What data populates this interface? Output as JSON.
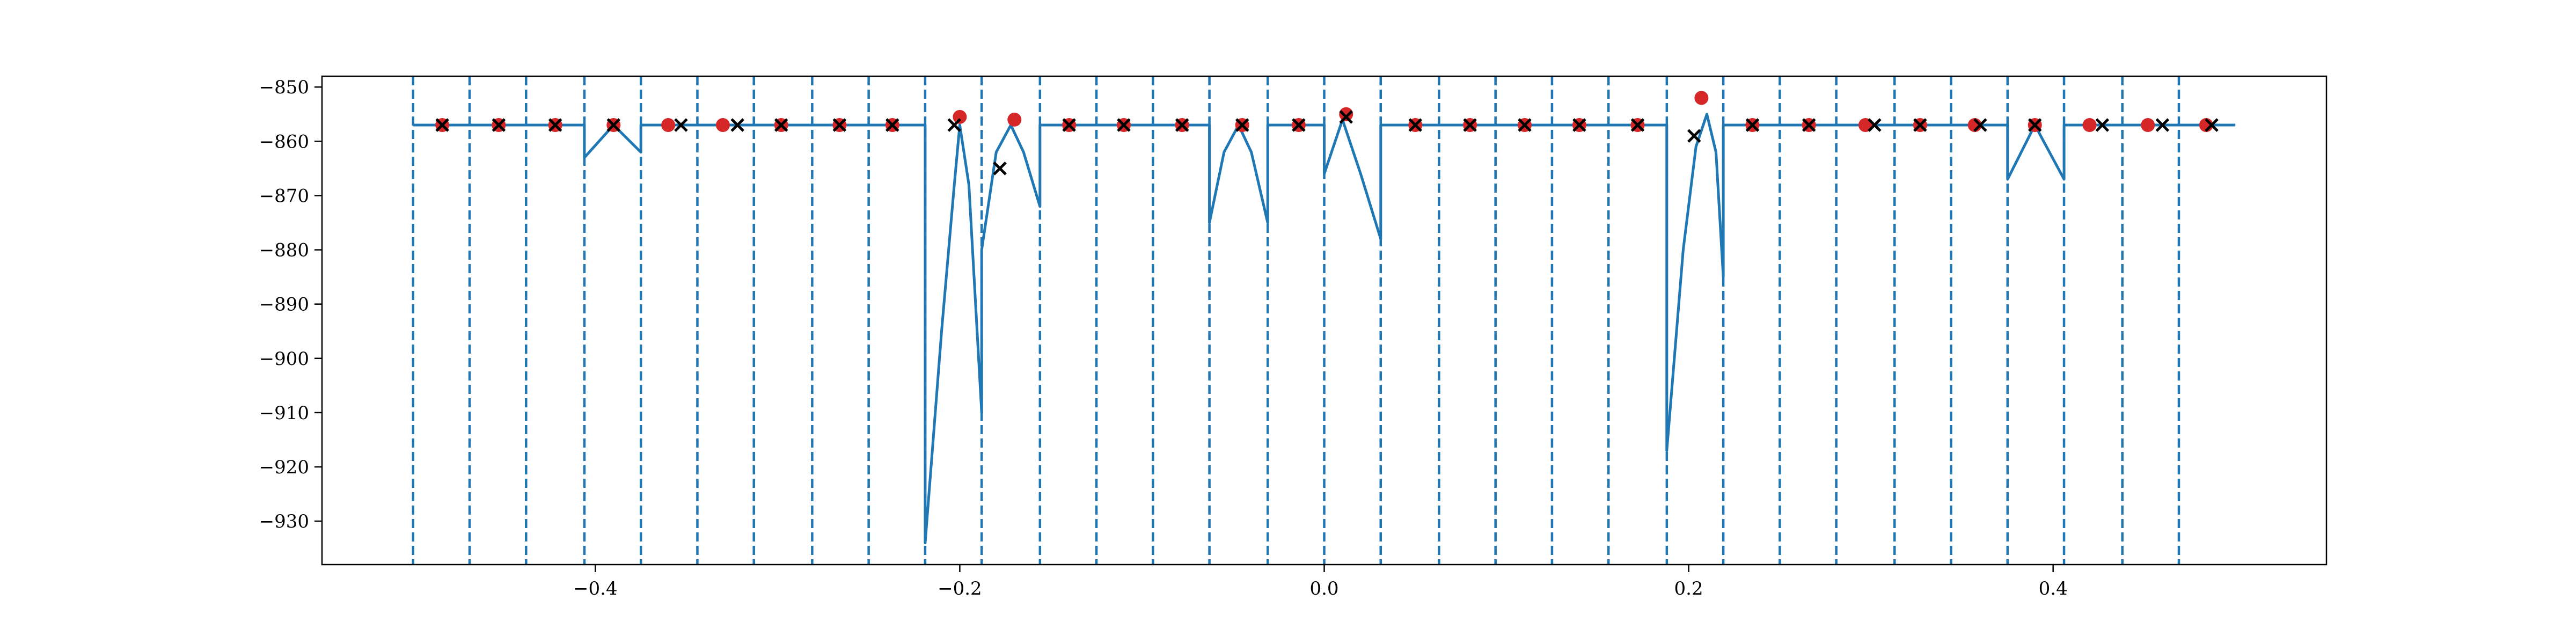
{
  "chart_data": {
    "type": "line",
    "title": "",
    "xlabel": "",
    "ylabel": "",
    "xlim": [
      -0.55,
      0.55
    ],
    "ylim": [
      -938,
      -848
    ],
    "grid": false,
    "legend": "none",
    "x_ticks": [
      -0.4,
      -0.2,
      0.0,
      0.2,
      0.4
    ],
    "x_tick_labels": [
      "−0.4",
      "−0.2",
      "0.0",
      "0.2",
      "0.4"
    ],
    "y_ticks": [
      -850,
      -860,
      -870,
      -880,
      -890,
      -900,
      -910,
      -920,
      -930
    ],
    "y_tick_labels": [
      "−850",
      "−860",
      "−870",
      "−880",
      "−890",
      "−900",
      "−910",
      "−920",
      "−930"
    ],
    "vlines_x": [
      -0.5,
      -0.469,
      -0.438,
      -0.406,
      -0.375,
      -0.344,
      -0.313,
      -0.281,
      -0.25,
      -0.219,
      -0.188,
      -0.156,
      -0.125,
      -0.094,
      -0.063,
      -0.031,
      0.0,
      0.031,
      0.063,
      0.094,
      0.125,
      0.156,
      0.188,
      0.219,
      0.25,
      0.281,
      0.313,
      0.344,
      0.375,
      0.406,
      0.438,
      0.469
    ],
    "colors": {
      "line": "#1f77b4",
      "dot": "#d62728",
      "cross": "#000000",
      "vline": "#1f77b4"
    },
    "series": [
      {
        "type": "line",
        "x": [
          -0.5,
          -0.406,
          -0.406,
          -0.39,
          -0.375,
          -0.375,
          -0.219,
          -0.219,
          -0.21,
          -0.203,
          -0.2,
          -0.195,
          -0.188,
          -0.188,
          -0.18,
          -0.172,
          -0.165,
          -0.156,
          -0.156,
          -0.063,
          -0.063,
          -0.055,
          -0.047,
          -0.04,
          -0.031,
          -0.031,
          0.0,
          0.0,
          0.01,
          0.02,
          0.031,
          0.031,
          0.188,
          0.188,
          0.197,
          0.204,
          0.21,
          0.215,
          0.219,
          0.219,
          0.375,
          0.375,
          0.39,
          0.406,
          0.406,
          0.5
        ],
        "y": [
          -857,
          -857,
          -863,
          -857,
          -862,
          -857,
          -857,
          -934,
          -895,
          -868,
          -857,
          -868,
          -910,
          -880,
          -862,
          -857,
          -862,
          -872,
          -857,
          -857,
          -875,
          -862,
          -857,
          -862,
          -875,
          -857,
          -857,
          -866,
          -856,
          -866,
          -878,
          -857,
          -857,
          -917,
          -880,
          -861,
          -855,
          -862,
          -885,
          -857,
          -857,
          -867,
          -857,
          -867,
          -857,
          -857
        ]
      },
      {
        "type": "scatter",
        "marker": "dot",
        "x": [
          -0.484,
          -0.453,
          -0.422,
          -0.39,
          -0.36,
          -0.33,
          -0.298,
          -0.266,
          -0.237,
          -0.2,
          -0.17,
          -0.14,
          -0.11,
          -0.078,
          -0.045,
          -0.014,
          0.012,
          0.05,
          0.08,
          0.11,
          0.14,
          0.172,
          0.207,
          0.235,
          0.266,
          0.297,
          0.327,
          0.357,
          0.39,
          0.42,
          0.452,
          0.484
        ],
        "y": [
          -857,
          -857,
          -857,
          -857,
          -857,
          -857,
          -857,
          -857,
          -857,
          -855.5,
          -856,
          -857,
          -857,
          -857,
          -857,
          -857,
          -855,
          -857,
          -857,
          -857,
          -857,
          -857,
          -852,
          -857,
          -857,
          -857,
          -857,
          -857,
          -857,
          -857,
          -857,
          -857
        ]
      },
      {
        "type": "scatter",
        "marker": "x",
        "x": [
          -0.484,
          -0.453,
          -0.422,
          -0.39,
          -0.353,
          -0.322,
          -0.298,
          -0.266,
          -0.237,
          -0.203,
          -0.178,
          -0.14,
          -0.11,
          -0.078,
          -0.045,
          -0.014,
          0.012,
          0.05,
          0.08,
          0.11,
          0.14,
          0.172,
          0.203,
          0.235,
          0.266,
          0.302,
          0.327,
          0.36,
          0.39,
          0.427,
          0.46,
          0.487
        ],
        "y": [
          -857,
          -857,
          -857,
          -857,
          -857,
          -857,
          -857,
          -857,
          -857,
          -857,
          -865,
          -857,
          -857,
          -857,
          -857,
          -857,
          -855.5,
          -857,
          -857,
          -857,
          -857,
          -857,
          -859,
          -857,
          -857,
          -857,
          -857,
          -857,
          -857,
          -857,
          -857,
          -857
        ]
      }
    ]
  }
}
